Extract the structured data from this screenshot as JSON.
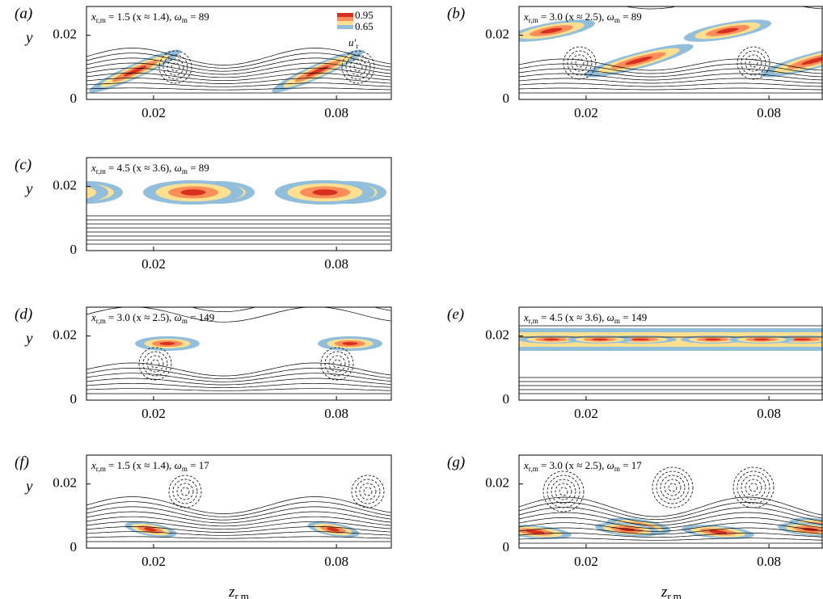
{
  "chart_data": [
    {
      "type": "contour",
      "label": "(a)",
      "annotation": [
        "x",
        "r,m",
        " = 1.5 (x ≈ 1.4), ",
        "ω",
        "m",
        " = 89"
      ],
      "ylabel": "y",
      "xlim": [
        -0.002,
        0.098
      ],
      "ylim": [
        0,
        0.029
      ],
      "xticks": [
        0.02,
        0.08
      ],
      "yticks": [
        0,
        0.02
      ],
      "colorbar": {
        "ticks": [
          0.95,
          0.65
        ],
        "label": [
          "u′",
          "r"
        ],
        "colors": [
          "#d7301f",
          "#fc8d59",
          "#fee090",
          "#91bfdb"
        ]
      }
    },
    {
      "type": "contour",
      "label": "(b)",
      "annotation": [
        "x",
        "r,m",
        " = 3.0 (x ≈ 2.5), ",
        "ω",
        "m",
        " = 89"
      ],
      "xlim": [
        -0.002,
        0.098
      ],
      "ylim": [
        0,
        0.029
      ],
      "xticks": [
        0.02,
        0.08
      ],
      "yticks": [
        0,
        0.02
      ]
    },
    {
      "type": "contour",
      "label": "(c)",
      "annotation": [
        "x",
        "r,m",
        " = 4.5 (x ≈ 3.6), ",
        "ω",
        "m",
        " = 89"
      ],
      "ylabel": "y",
      "xlim": [
        -0.002,
        0.098
      ],
      "ylim": [
        0,
        0.029
      ],
      "xticks": [
        0.02,
        0.08
      ],
      "yticks": [
        0,
        0.02
      ]
    },
    {
      "type": "contour",
      "label": "(d)",
      "annotation": [
        "x",
        "r,m",
        " = 3.0 (x ≈ 2.5), ",
        "ω",
        "m",
        " = 149"
      ],
      "ylabel": "y",
      "xlim": [
        -0.002,
        0.098
      ],
      "ylim": [
        0,
        0.029
      ],
      "xticks": [
        0.02,
        0.08
      ],
      "yticks": [
        0,
        0.02
      ]
    },
    {
      "type": "contour",
      "label": "(e)",
      "annotation": [
        "x",
        "r,m",
        " = 4.5 (x ≈ 3.6), ",
        "ω",
        "m",
        " = 149"
      ],
      "xlim": [
        -0.002,
        0.098
      ],
      "ylim": [
        0,
        0.029
      ],
      "xticks": [
        0.02,
        0.08
      ],
      "yticks": [
        0,
        0.02
      ]
    },
    {
      "type": "contour",
      "label": "(f)",
      "annotation": [
        "x",
        "r,m",
        " = 1.5 (x ≈ 1.4), ",
        "ω",
        "m",
        " = 17"
      ],
      "ylabel": "y",
      "xlabel": [
        "z",
        "r,m"
      ],
      "xlim": [
        -0.002,
        0.098
      ],
      "ylim": [
        0,
        0.029
      ],
      "xticks": [
        0.02,
        0.08
      ],
      "yticks": [
        0,
        0.02
      ]
    },
    {
      "type": "contour",
      "label": "(g)",
      "annotation": [
        "x",
        "r,m",
        " = 3.0 (x ≈ 2.5), ",
        "ω",
        "m",
        " = 17"
      ],
      "xlabel": [
        "z",
        "r,m"
      ],
      "xlim": [
        -0.002,
        0.098
      ],
      "ylim": [
        0,
        0.029
      ],
      "xticks": [
        0.02,
        0.08
      ],
      "yticks": [
        0,
        0.02
      ]
    }
  ]
}
